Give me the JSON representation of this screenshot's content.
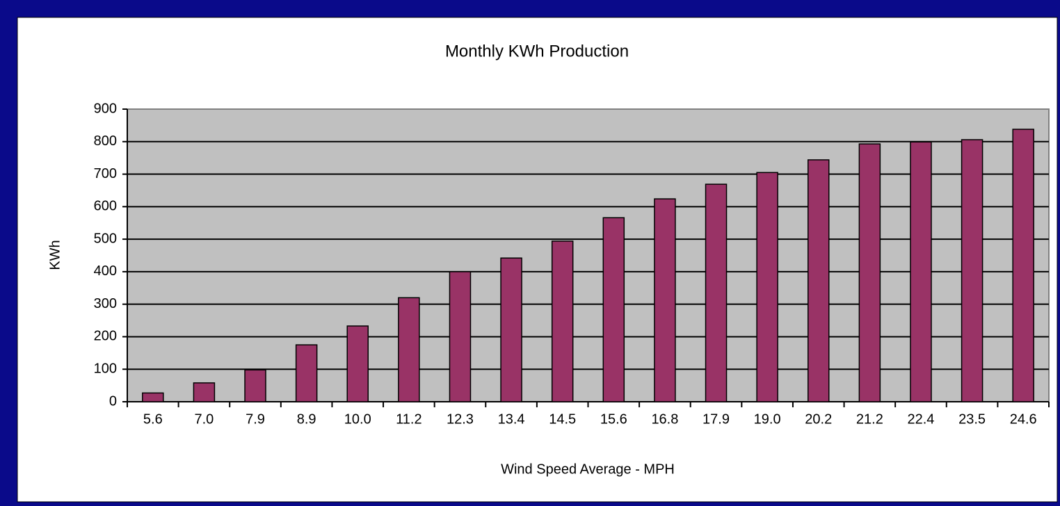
{
  "chart_data": {
    "type": "bar",
    "title": "Monthly KWh Production",
    "x_label": "Wind Speed Average - MPH",
    "y_label": "KWh",
    "categories": [
      "5.6",
      "7.0",
      "7.9",
      "8.9",
      "10.0",
      "11.2",
      "12.3",
      "13.4",
      "14.5",
      "15.6",
      "16.8",
      "17.9",
      "19.0",
      "20.2",
      "21.2",
      "22.4",
      "23.5",
      "24.6"
    ],
    "values": [
      27,
      58,
      98,
      175,
      233,
      320,
      400,
      442,
      494,
      566,
      624,
      669,
      705,
      744,
      793,
      799,
      806,
      838
    ],
    "color": "#993366",
    "ylim": [
      0,
      900
    ],
    "yticks": [
      0,
      100,
      200,
      300,
      400,
      500,
      600,
      700,
      800,
      900
    ],
    "grid": true
  }
}
